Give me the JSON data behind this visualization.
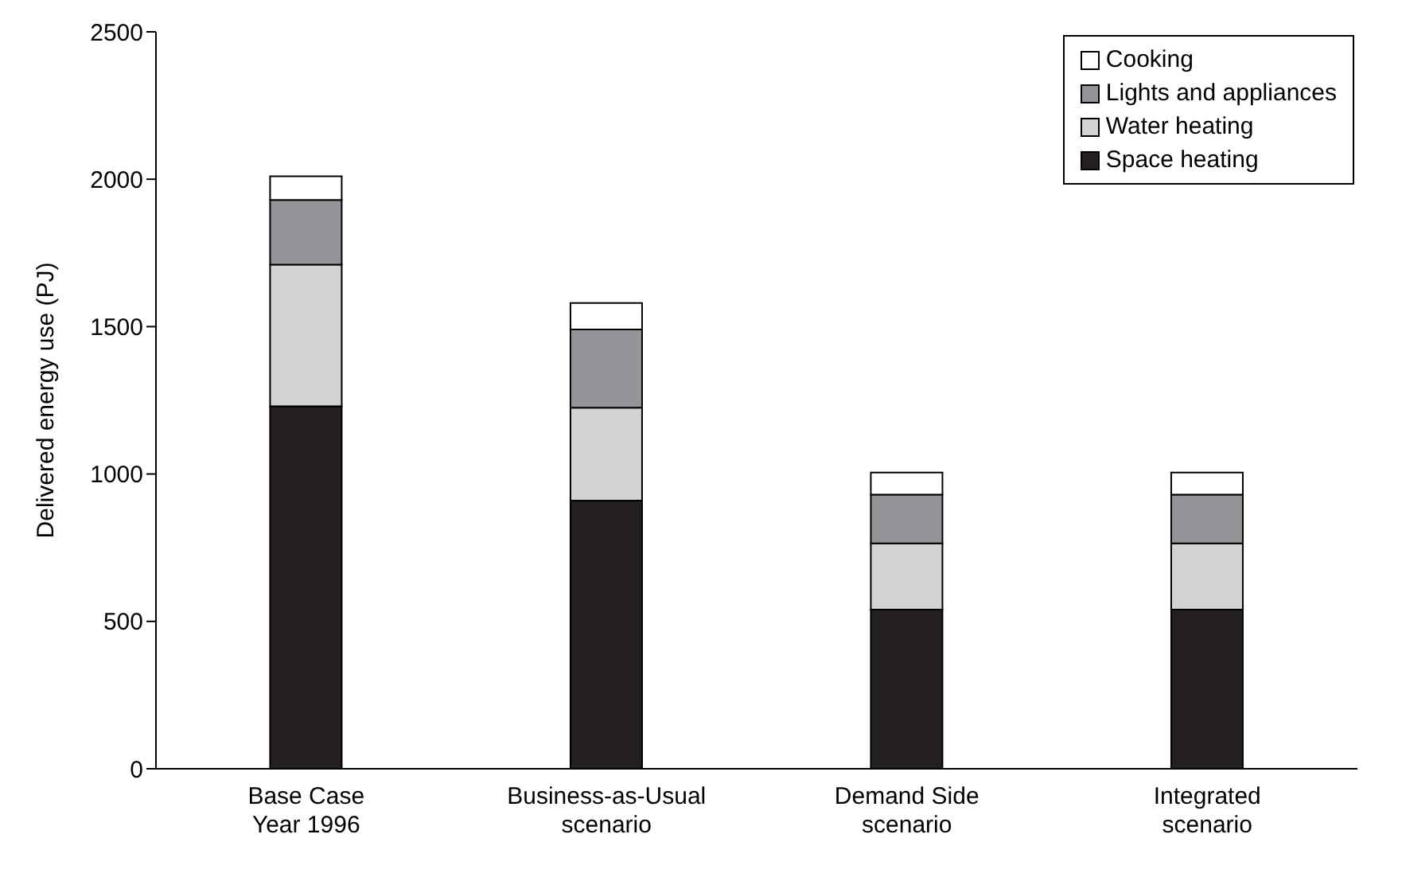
{
  "chart_data": {
    "type": "bar",
    "stacked": true,
    "ylabel": "Delivered energy use (PJ)",
    "categories": [
      "Base Case\nYear 1996",
      "Business-as-Usual\nscenario",
      "Demand Side\nscenario",
      "Integrated\nscenario"
    ],
    "series": [
      {
        "name": "Space heating",
        "color": "#231f20",
        "values": [
          1230,
          910,
          540,
          540
        ]
      },
      {
        "name": "Water heating",
        "color": "#d1d3d4",
        "values": [
          480,
          315,
          225,
          225
        ]
      },
      {
        "name": "Lights and appliances",
        "color": "#939598",
        "values": [
          220,
          265,
          165,
          165
        ]
      },
      {
        "name": "Cooking",
        "color": "#ffffff",
        "values": [
          80,
          90,
          75,
          75
        ]
      }
    ],
    "ylim": [
      0,
      2500
    ],
    "yticks": [
      0,
      500,
      1000,
      1500,
      2000,
      2500
    ],
    "grid": false,
    "legend": "top right"
  }
}
